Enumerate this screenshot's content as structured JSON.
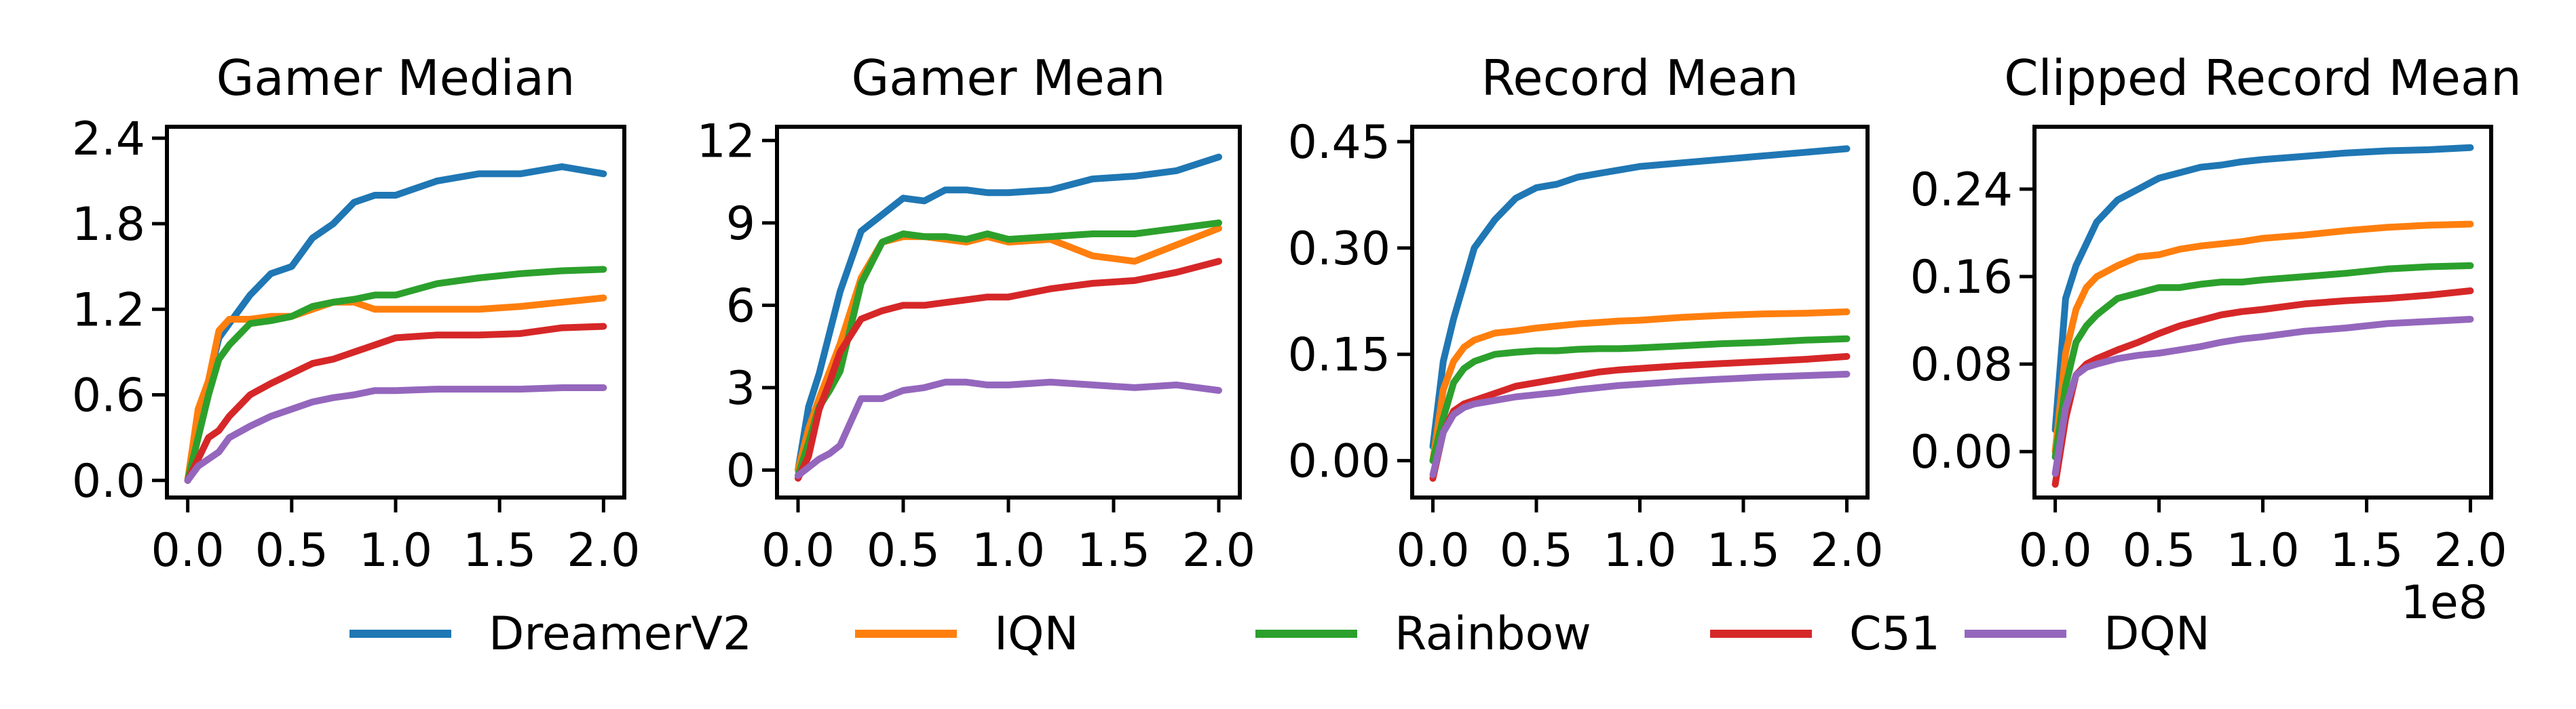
{
  "chart_data": [
    {
      "type": "line",
      "title": "Gamer Median",
      "x": [
        0,
        0.05,
        0.1,
        0.15,
        0.2,
        0.3,
        0.4,
        0.5,
        0.6,
        0.7,
        0.8,
        0.9,
        1.0,
        1.2,
        1.4,
        1.6,
        1.8,
        2.0
      ],
      "xlim": [
        -0.1,
        2.1
      ],
      "xticks": [
        "0.0",
        "0.5",
        "1.0",
        "1.5",
        "2.0"
      ],
      "ylim": [
        -0.12,
        2.48
      ],
      "yticks": [
        0,
        0.6,
        1.2,
        1.8,
        2.4
      ],
      "yticklabels": [
        "0.0",
        "0.6",
        "1.2",
        "1.8",
        "2.4"
      ],
      "series": [
        {
          "name": "DreamerV2",
          "values": [
            0,
            0.45,
            0.7,
            1.0,
            1.1,
            1.3,
            1.45,
            1.5,
            1.7,
            1.8,
            1.95,
            2.0,
            2.0,
            2.1,
            2.15,
            2.15,
            2.2,
            2.15
          ]
        },
        {
          "name": "IQN",
          "values": [
            0,
            0.5,
            0.7,
            1.05,
            1.13,
            1.13,
            1.15,
            1.15,
            1.2,
            1.25,
            1.25,
            1.2,
            1.2,
            1.2,
            1.2,
            1.22,
            1.25,
            1.28
          ]
        },
        {
          "name": "Rainbow",
          "values": [
            0,
            0.3,
            0.6,
            0.85,
            0.95,
            1.1,
            1.12,
            1.15,
            1.22,
            1.25,
            1.27,
            1.3,
            1.3,
            1.38,
            1.42,
            1.45,
            1.47,
            1.48
          ]
        },
        {
          "name": "C51",
          "values": [
            0,
            0.15,
            0.3,
            0.35,
            0.45,
            0.6,
            0.68,
            0.75,
            0.82,
            0.85,
            0.9,
            0.95,
            1.0,
            1.02,
            1.02,
            1.03,
            1.07,
            1.08
          ]
        },
        {
          "name": "DQN",
          "values": [
            0,
            0.1,
            0.15,
            0.2,
            0.3,
            0.38,
            0.45,
            0.5,
            0.55,
            0.58,
            0.6,
            0.63,
            0.63,
            0.64,
            0.64,
            0.64,
            0.65,
            0.65
          ]
        }
      ]
    },
    {
      "type": "line",
      "title": "Gamer Mean",
      "x": [
        0,
        0.05,
        0.1,
        0.15,
        0.2,
        0.3,
        0.4,
        0.5,
        0.6,
        0.7,
        0.8,
        0.9,
        1.0,
        1.2,
        1.4,
        1.6,
        1.8,
        2.0
      ],
      "xlim": [
        -0.1,
        2.1
      ],
      "xticks": [
        "0.0",
        "0.5",
        "1.0",
        "1.5",
        "2.0"
      ],
      "ylim": [
        -1.0,
        12.5
      ],
      "yticks": [
        0,
        3,
        6,
        9,
        12
      ],
      "yticklabels": [
        "0",
        "3",
        "6",
        "9",
        "12"
      ],
      "series": [
        {
          "name": "DreamerV2",
          "values": [
            0,
            2.3,
            3.5,
            5,
            6.5,
            8.7,
            9.3,
            9.9,
            9.8,
            10.2,
            10.2,
            10.1,
            10.1,
            10.2,
            10.6,
            10.7,
            10.9,
            11.4
          ]
        },
        {
          "name": "IQN",
          "values": [
            0,
            1.5,
            2.6,
            3.6,
            4.6,
            7.0,
            8.3,
            8.5,
            8.5,
            8.4,
            8.3,
            8.5,
            8.3,
            8.4,
            7.8,
            7.6,
            8.2,
            8.8
          ]
        },
        {
          "name": "Rainbow",
          "values": [
            -0.2,
            1.0,
            2.3,
            2.9,
            3.6,
            6.8,
            8.3,
            8.6,
            8.5,
            8.5,
            8.4,
            8.6,
            8.4,
            8.5,
            8.6,
            8.6,
            8.8,
            9.0
          ]
        },
        {
          "name": "C51",
          "values": [
            -0.3,
            0.5,
            2.2,
            3.2,
            4.3,
            5.5,
            5.8,
            6.0,
            6.0,
            6.1,
            6.2,
            6.3,
            6.3,
            6.6,
            6.8,
            6.9,
            7.2,
            7.6
          ]
        },
        {
          "name": "DQN",
          "values": [
            -0.2,
            0.1,
            0.4,
            0.6,
            0.9,
            2.6,
            2.6,
            2.9,
            3.0,
            3.2,
            3.2,
            3.1,
            3.1,
            3.2,
            3.1,
            3.0,
            3.1,
            2.9
          ]
        }
      ]
    },
    {
      "type": "line",
      "title": "Record Mean",
      "x": [
        0,
        0.05,
        0.1,
        0.15,
        0.2,
        0.3,
        0.4,
        0.5,
        0.6,
        0.7,
        0.8,
        0.9,
        1.0,
        1.2,
        1.4,
        1.6,
        1.8,
        2.0
      ],
      "xlim": [
        -0.1,
        2.1
      ],
      "xticks": [
        "0.0",
        "0.5",
        "1.0",
        "1.5",
        "2.0"
      ],
      "ylim": [
        -0.052,
        0.471
      ],
      "yticks": [
        0,
        0.15,
        0.3,
        0.45
      ],
      "yticklabels": [
        "0.00",
        "0.15",
        "0.30",
        "0.45"
      ],
      "series": [
        {
          "name": "DreamerV2",
          "values": [
            0.02,
            0.14,
            0.2,
            0.25,
            0.3,
            0.34,
            0.37,
            0.385,
            0.39,
            0.4,
            0.405,
            0.41,
            0.415,
            0.42,
            0.425,
            0.43,
            0.435,
            0.44
          ]
        },
        {
          "name": "IQN",
          "values": [
            0,
            0.1,
            0.14,
            0.16,
            0.17,
            0.18,
            0.183,
            0.187,
            0.19,
            0.193,
            0.195,
            0.197,
            0.198,
            0.202,
            0.205,
            0.207,
            0.208,
            0.21
          ]
        },
        {
          "name": "Rainbow",
          "values": [
            0,
            0.06,
            0.11,
            0.13,
            0.14,
            0.15,
            0.153,
            0.155,
            0.155,
            0.157,
            0.158,
            0.158,
            0.159,
            0.162,
            0.165,
            0.167,
            0.17,
            0.172
          ]
        },
        {
          "name": "C51",
          "values": [
            -0.025,
            0.04,
            0.07,
            0.08,
            0.085,
            0.095,
            0.105,
            0.11,
            0.115,
            0.12,
            0.125,
            0.128,
            0.13,
            0.134,
            0.137,
            0.14,
            0.143,
            0.147
          ]
        },
        {
          "name": "DQN",
          "values": [
            -0.02,
            0.04,
            0.065,
            0.075,
            0.08,
            0.085,
            0.09,
            0.093,
            0.096,
            0.1,
            0.103,
            0.106,
            0.108,
            0.112,
            0.115,
            0.118,
            0.12,
            0.122
          ]
        }
      ]
    },
    {
      "type": "line",
      "title": "Clipped Record Mean",
      "x": [
        0,
        0.05,
        0.1,
        0.15,
        0.2,
        0.3,
        0.4,
        0.5,
        0.6,
        0.7,
        0.8,
        0.9,
        1.0,
        1.2,
        1.4,
        1.6,
        1.8,
        2.0
      ],
      "xlim": [
        -0.1,
        2.1
      ],
      "xticks": [
        "0.0",
        "0.5",
        "1.0",
        "1.5",
        "2.0"
      ],
      "x_offset_label": "1e8",
      "ylim": [
        -0.042,
        0.297
      ],
      "yticks": [
        0,
        0.08,
        0.16,
        0.24
      ],
      "yticklabels": [
        "0.00",
        "0.08",
        "0.16",
        "0.24"
      ],
      "series": [
        {
          "name": "DreamerV2",
          "values": [
            0.02,
            0.14,
            0.17,
            0.19,
            0.21,
            0.23,
            0.24,
            0.25,
            0.255,
            0.26,
            0.262,
            0.265,
            0.267,
            0.27,
            0.273,
            0.275,
            0.276,
            0.278
          ]
        },
        {
          "name": "IQN",
          "values": [
            0,
            0.09,
            0.13,
            0.15,
            0.16,
            0.17,
            0.178,
            0.18,
            0.185,
            0.188,
            0.19,
            0.192,
            0.195,
            0.198,
            0.202,
            0.205,
            0.207,
            0.208
          ]
        },
        {
          "name": "Rainbow",
          "values": [
            -0.005,
            0.06,
            0.1,
            0.115,
            0.125,
            0.14,
            0.145,
            0.15,
            0.15,
            0.153,
            0.155,
            0.155,
            0.157,
            0.16,
            0.163,
            0.167,
            0.169,
            0.17
          ]
        },
        {
          "name": "C51",
          "values": [
            -0.03,
            0.03,
            0.07,
            0.08,
            0.085,
            0.093,
            0.1,
            0.108,
            0.115,
            0.12,
            0.125,
            0.128,
            0.13,
            0.135,
            0.138,
            0.14,
            0.143,
            0.147
          ]
        },
        {
          "name": "DQN",
          "values": [
            -0.02,
            0.04,
            0.07,
            0.077,
            0.08,
            0.085,
            0.088,
            0.09,
            0.093,
            0.096,
            0.1,
            0.103,
            0.105,
            0.11,
            0.113,
            0.117,
            0.119,
            0.121
          ]
        }
      ]
    }
  ],
  "legend": {
    "placement": "bottom",
    "entries": [
      {
        "label": "DreamerV2",
        "color": "#1f77b4"
      },
      {
        "label": "IQN",
        "color": "#ff7f0e"
      },
      {
        "label": "Rainbow",
        "color": "#2ca02c"
      },
      {
        "label": "C51",
        "color": "#d62728"
      },
      {
        "label": "DQN",
        "color": "#9467bd"
      }
    ]
  },
  "grid": false
}
